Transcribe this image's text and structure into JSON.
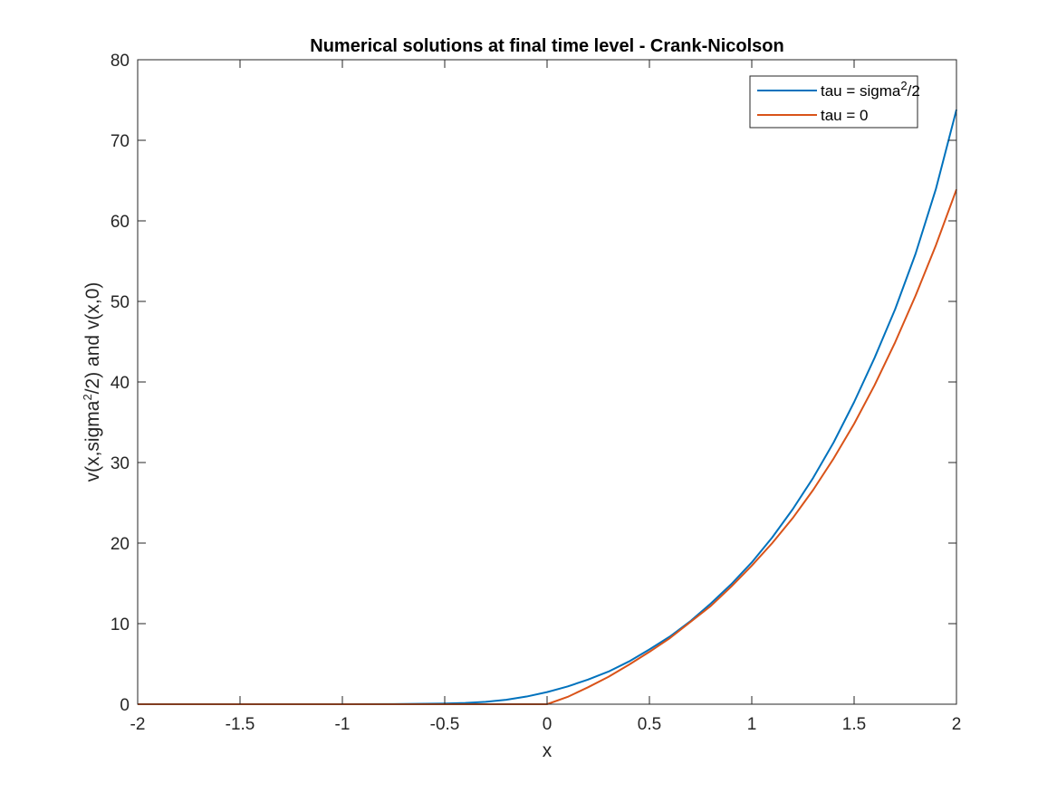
{
  "chart_data": {
    "type": "line",
    "title": "Numerical solutions at final time level - Crank-Nicolson",
    "xlabel": "x",
    "ylabel": {
      "before": "v(x,sigma",
      "sup": "2",
      "after": "/2) and v(x,0)"
    },
    "xlim": [
      -2,
      2
    ],
    "ylim": [
      0,
      80
    ],
    "xticks": [
      -2,
      -1.5,
      -1,
      -0.5,
      0,
      0.5,
      1,
      1.5,
      2
    ],
    "xtick_labels": [
      "-2",
      "-1.5",
      "-1",
      "-0.5",
      "0",
      "0.5",
      "1",
      "1.5",
      "2"
    ],
    "yticks": [
      0,
      10,
      20,
      30,
      40,
      50,
      60,
      70,
      80
    ],
    "ytick_labels": [
      "0",
      "10",
      "20",
      "30",
      "40",
      "50",
      "60",
      "70",
      "80"
    ],
    "grid": false,
    "legend_position": "top-right",
    "series": [
      {
        "name": {
          "before": "tau = sigma",
          "sup": "2",
          "after": "/2"
        },
        "color": "#0072BD",
        "x": [
          -2,
          -1.5,
          -1,
          -0.75,
          -0.5,
          -0.4,
          -0.3,
          -0.2,
          -0.1,
          0,
          0.1,
          0.2,
          0.3,
          0.4,
          0.5,
          0.6,
          0.7,
          0.8,
          0.9,
          1,
          1.1,
          1.2,
          1.3,
          1.4,
          1.5,
          1.6,
          1.7,
          1.8,
          1.9,
          2
        ],
        "y": [
          0,
          0,
          0,
          0.02,
          0.08,
          0.16,
          0.3,
          0.55,
          0.95,
          1.5,
          2.2,
          3.05,
          4.05,
          5.3,
          6.8,
          8.4,
          10.3,
          12.5,
          14.9,
          17.6,
          20.7,
          24.2,
          28.1,
          32.5,
          37.5,
          43.0,
          49.0,
          55.9,
          64.0,
          73.8
        ]
      },
      {
        "name": {
          "before": "tau = 0",
          "sup": "",
          "after": ""
        },
        "color": "#D95319",
        "x": [
          -2,
          -1.5,
          -1,
          -0.5,
          0,
          0.1,
          0.2,
          0.3,
          0.4,
          0.5,
          0.6,
          0.7,
          0.8,
          0.9,
          1,
          1.1,
          1.2,
          1.3,
          1.4,
          1.5,
          1.6,
          1.7,
          1.8,
          1.9,
          2
        ],
        "y": [
          0,
          0,
          0,
          0,
          0,
          0.9,
          2.1,
          3.4,
          4.9,
          6.5,
          8.2,
          10.2,
          12.2,
          14.6,
          17.2,
          20.0,
          23.1,
          26.6,
          30.5,
          34.8,
          39.6,
          44.9,
          50.7,
          57.0,
          63.9
        ]
      }
    ]
  }
}
